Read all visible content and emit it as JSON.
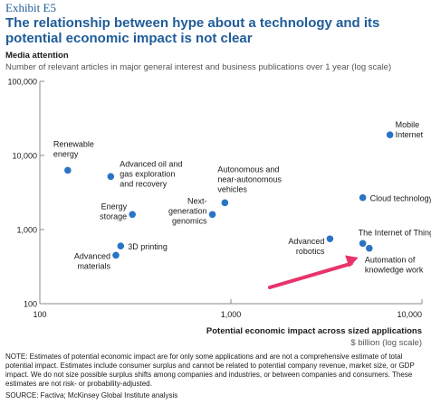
{
  "header": {
    "exhibit": "Exhibit E5",
    "title": "The relationship between hype about a technology and its potential economic impact is not clear"
  },
  "axis_titles": {
    "y_title": "Media attention",
    "y_subtitle": "Number of relevant articles in major general interest and business publications over 1 year (log scale)",
    "x_title": "Potential economic impact across sized applications",
    "x_subtitle": "$ billion (log scale)"
  },
  "footer": {
    "note": "NOTE: Estimates of potential economic impact are for only some applications and are not a comprehensive estimate of total potential impact. Estimates include consumer surplus and cannot be related to potential company revenue, market size, or GDP impact. We do not size possible surplus shifts among companies and industries, or between companies and consumers. These estimates are not risk- or probability-adjusted.",
    "source": "SOURCE: Factiva; McKinsey Global Institute analysis"
  },
  "colors": {
    "point": "#2a74c4",
    "axis": "#8a8a8a",
    "arrow": "#e8336b",
    "title": "#1f5c99"
  },
  "chart_data": {
    "type": "scatter",
    "x_scale": "log",
    "y_scale": "log",
    "xlim": [
      100,
      10000
    ],
    "ylim": [
      100,
      100000
    ],
    "x_ticks": [
      {
        "value": 100,
        "label": "100"
      },
      {
        "value": 1000,
        "label": "1,000"
      },
      {
        "value": 10000,
        "label": "10,000"
      }
    ],
    "y_ticks": [
      {
        "value": 100,
        "label": "100"
      },
      {
        "value": 1000,
        "label": "1,000"
      },
      {
        "value": 10000,
        "label": "10,000"
      },
      {
        "value": 100000,
        "label": "100,000"
      }
    ],
    "grid": false,
    "points": [
      {
        "label": [
          "Renewable",
          "energy"
        ],
        "x": 140,
        "y": 6300
      },
      {
        "label": [
          "Advanced oil and",
          "gas exploration",
          "and recovery"
        ],
        "x": 235,
        "y": 5200
      },
      {
        "label": [
          "Energy",
          "storage"
        ],
        "x": 305,
        "y": 1600
      },
      {
        "label": [
          "3D printing"
        ],
        "x": 265,
        "y": 600
      },
      {
        "label": [
          "Advanced",
          "materials"
        ],
        "x": 250,
        "y": 450
      },
      {
        "label": [
          "Next-",
          "generation",
          "genomics"
        ],
        "x": 800,
        "y": 1600
      },
      {
        "label": [
          "Autonomous and",
          "near-autonomous",
          "vehicles"
        ],
        "x": 930,
        "y": 2300
      },
      {
        "label": [
          "Mobile",
          "Internet"
        ],
        "x": 6800,
        "y": 19000
      },
      {
        "label": [
          "Cloud technology"
        ],
        "x": 4900,
        "y": 2700
      },
      {
        "label": [
          "The Internet of Things"
        ],
        "x": 4900,
        "y": 650
      },
      {
        "label": [
          "Automation of",
          "knowledge work"
        ],
        "x": 5300,
        "y": 560
      },
      {
        "label": [
          "Advanced",
          "robotics"
        ],
        "x": 3300,
        "y": 750
      }
    ]
  }
}
